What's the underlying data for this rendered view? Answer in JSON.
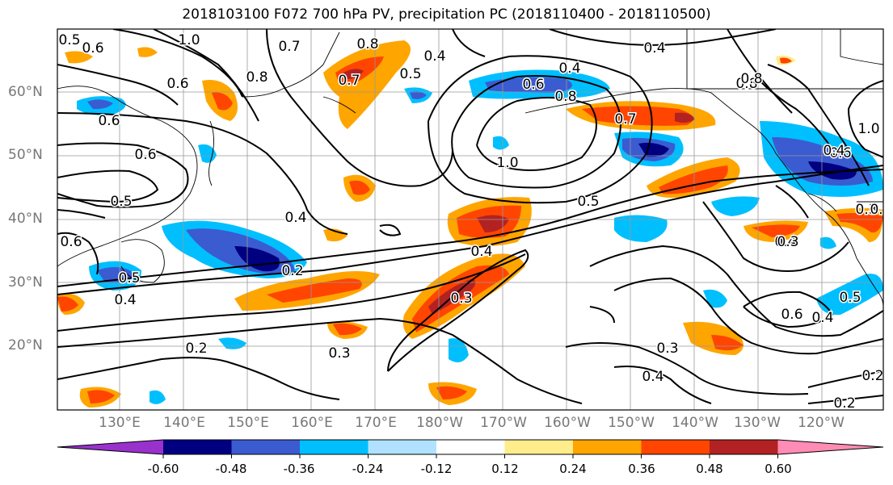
{
  "title": "2018103100 F072 700 hPa PV, precipitation PC (2018110400 - 2018110500)",
  "lat_labels": [
    "60°N",
    "50°N",
    "40°N",
    "30°N",
    "20°N"
  ],
  "lon_labels": [
    "130°E",
    "140°E",
    "150°E",
    "160°E",
    "170°E",
    "180°W",
    "170°W",
    "160°W",
    "150°W",
    "140°W",
    "130°W",
    "120°W"
  ],
  "colorbar": {
    "ticks": [
      "-0.60",
      "-0.48",
      "-0.36",
      "-0.24",
      "-0.12",
      "0.12",
      "0.24",
      "0.36",
      "0.48",
      "0.60"
    ],
    "colors": [
      "#9932cc",
      "#000080",
      "#3b5bd1",
      "#00bfff",
      "#b0e2ff",
      "#ffffff",
      "#ffec8b",
      "#ffa500",
      "#ff4500",
      "#b22222",
      "#ff8cb4"
    ]
  },
  "contour_labels": [
    "0.5",
    "0.6",
    "1.0",
    "0.6",
    "0.7",
    "0.8",
    "0.6",
    "0.8",
    "0.7",
    "0.4",
    "0.5",
    "0.4",
    "0.6",
    "0.8",
    "0.4",
    "0.7",
    "0.8",
    "1.0",
    "0.6",
    "1.0",
    "0.6",
    "0.4",
    "0.5",
    "0.6",
    "0.5",
    "0.4",
    "0.5",
    "0.4",
    "0.3",
    "0.3",
    "0.3",
    "0.4",
    "0.6",
    "0.4",
    "0.5",
    "0.3",
    "0.2",
    "0.2",
    "0.2",
    "0.4",
    "0.2",
    "0.3",
    "0.2",
    "0.8",
    "0.4"
  ],
  "colors": {
    "contour": "#000000",
    "grid": "#999999",
    "coast": "#000000"
  }
}
